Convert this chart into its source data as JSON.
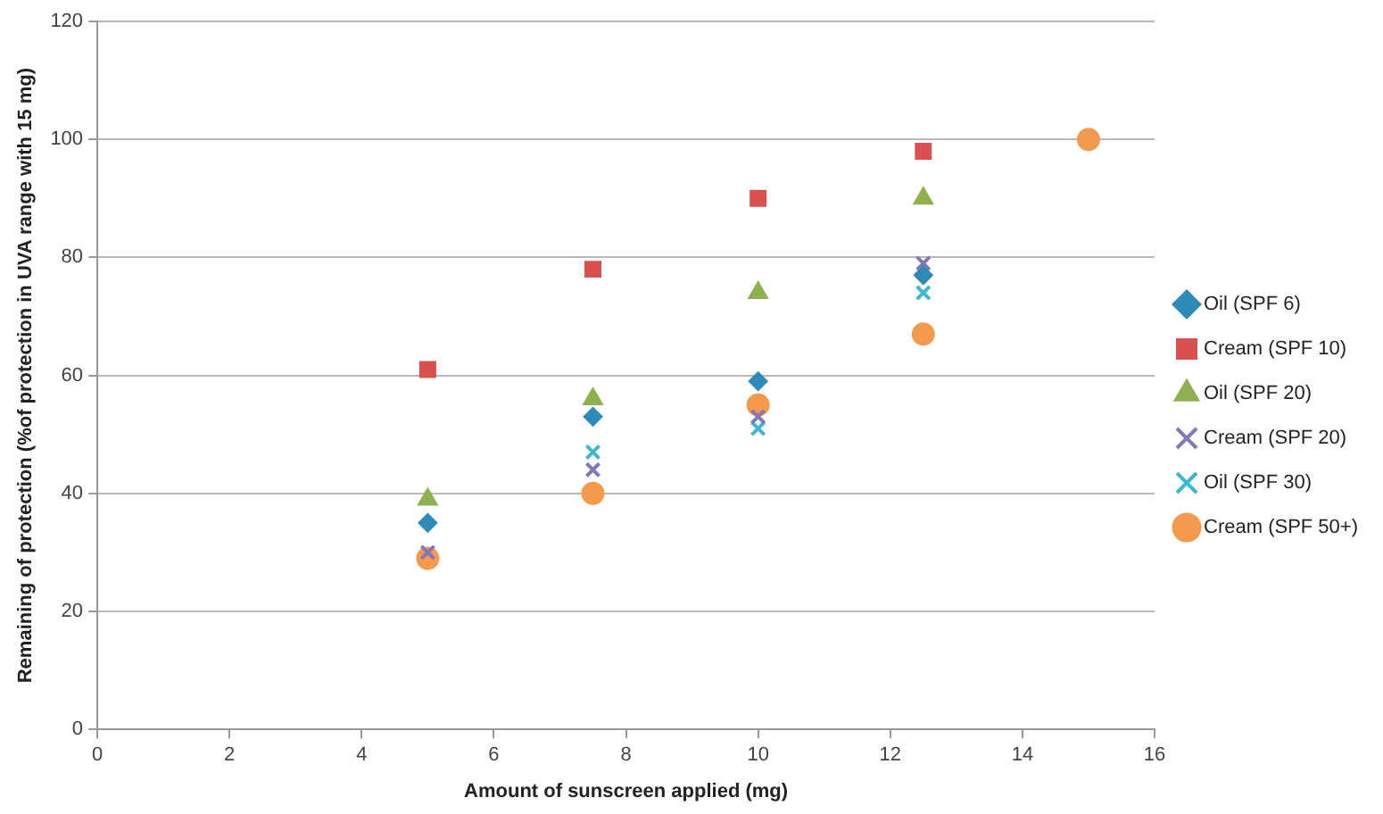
{
  "chart_data": {
    "type": "scatter",
    "xlabel": "Amount of sunscreen applied (mg)",
    "ylabel": "Remaining of protection (%of protection in UVA range with 15 mg)",
    "xlim": [
      0,
      16
    ],
    "xticks": [
      0,
      2,
      4,
      6,
      8,
      10,
      12,
      14,
      16
    ],
    "ylim": [
      0,
      120
    ],
    "yticks": [
      0,
      20,
      40,
      60,
      80,
      100,
      120
    ],
    "grid": "y",
    "legend": "right",
    "x": [
      5,
      7.5,
      10,
      12.5,
      15
    ],
    "series": [
      {
        "name": "Oil (SPF 6)",
        "color": "#2e8bb8",
        "marker": "diamond",
        "values": [
          35,
          53,
          59,
          77,
          null
        ]
      },
      {
        "name": "Cream (SPF 10)",
        "color": "#d9504e",
        "marker": "square",
        "values": [
          61,
          78,
          90,
          98,
          null
        ]
      },
      {
        "name": "Oil (SPF 20)",
        "color": "#8fb04f",
        "marker": "triangle",
        "values": [
          39,
          56,
          74,
          90,
          null
        ]
      },
      {
        "name": "Cream (SPF 20)",
        "color": "#8477b8",
        "marker": "cross",
        "values": [
          30,
          44,
          53,
          79,
          null
        ]
      },
      {
        "name": "Oil (SPF 30)",
        "color": "#3fb7cf",
        "marker": "cross",
        "values": [
          null,
          47,
          51,
          74,
          null
        ]
      },
      {
        "name": "Cream (SPF 50+)",
        "color": "#f59a4c",
        "marker": "circle",
        "values": [
          29,
          40,
          55,
          67,
          100
        ]
      }
    ]
  }
}
